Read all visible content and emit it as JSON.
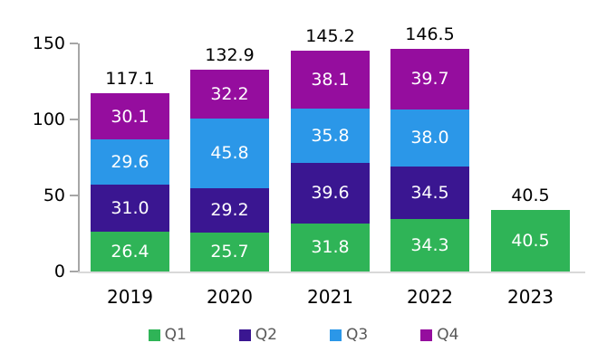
{
  "chart_data": {
    "type": "bar",
    "stacked": true,
    "title": "",
    "xlabel": "",
    "ylabel": "",
    "categories": [
      "2019",
      "2020",
      "2021",
      "2022",
      "2023"
    ],
    "series": [
      {
        "name": "Q1",
        "color": "#2fb457",
        "values": [
          26.4,
          25.7,
          31.8,
          34.3,
          40.5
        ]
      },
      {
        "name": "Q2",
        "color": "#3a1691",
        "values": [
          31.0,
          29.2,
          39.6,
          34.5,
          null
        ]
      },
      {
        "name": "Q3",
        "color": "#2b97e8",
        "values": [
          29.6,
          45.8,
          35.8,
          38.0,
          null
        ]
      },
      {
        "name": "Q4",
        "color": "#950d9e",
        "values": [
          30.1,
          32.2,
          38.1,
          39.7,
          null
        ]
      }
    ],
    "totals": [
      117.1,
      132.9,
      145.2,
      146.5,
      40.5
    ],
    "y_ticks": [
      0,
      50,
      100,
      150
    ],
    "ylim": [
      0,
      150
    ],
    "grid": false,
    "legend_position": "bottom",
    "legend": [
      "Q1",
      "Q2",
      "Q3",
      "Q4"
    ],
    "colors": {
      "axis_line": "#a6a6a6",
      "baseline": "#d9d9d9",
      "tick_text": "#000000",
      "total_text": "#000000",
      "segment_text": "#ffffff",
      "legend_text": "#595959",
      "background": "#ffffff"
    }
  }
}
